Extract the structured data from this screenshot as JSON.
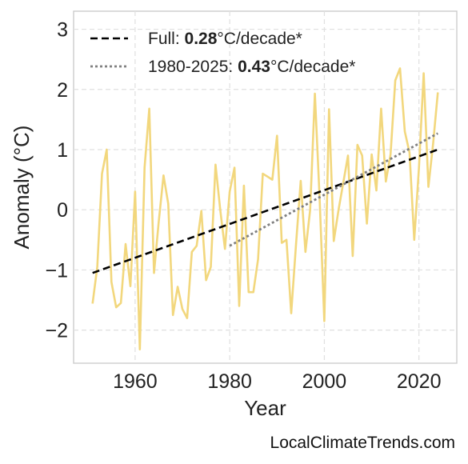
{
  "chart_data": {
    "type": "line",
    "xlabel": "Year",
    "ylabel": "Anomaly (°C)",
    "xlim": [
      1947,
      2028
    ],
    "ylim": [
      -2.55,
      3.3
    ],
    "xticks": [
      1960,
      1980,
      2000,
      2020
    ],
    "yticks": [
      -2,
      -1,
      0,
      1,
      2,
      3
    ],
    "ytick_labels": [
      "−2",
      "−1",
      "0",
      "1",
      "2",
      "3"
    ],
    "grid": true,
    "legend_position": "top-left",
    "series": [
      {
        "style": "line",
        "color": "#f2d77d",
        "x": [
          1951,
          1952,
          1953,
          1954,
          1955,
          1956,
          1957,
          1958,
          1959,
          1960,
          1961,
          1962,
          1963,
          1964,
          1965,
          1966,
          1967,
          1968,
          1969,
          1970,
          1971,
          1972,
          1973,
          1974,
          1975,
          1976,
          1977,
          1978,
          1979,
          1980,
          1981,
          1982,
          1983,
          1984,
          1985,
          1986,
          1987,
          1988,
          1989,
          1990,
          1991,
          1992,
          1993,
          1994,
          1995,
          1996,
          1997,
          1998,
          1999,
          2000,
          2001,
          2002,
          2003,
          2004,
          2005,
          2006,
          2007,
          2008,
          2009,
          2010,
          2011,
          2012,
          2013,
          2014,
          2015,
          2016,
          2017,
          2018,
          2019,
          2020,
          2021,
          2022,
          2023,
          2024
        ],
        "y": [
          -1.56,
          -0.95,
          0.6,
          1.0,
          -1.2,
          -1.62,
          -1.55,
          -0.57,
          -1.27,
          0.3,
          -2.32,
          0.7,
          1.68,
          -1.05,
          -0.2,
          0.57,
          0.1,
          -1.75,
          -1.28,
          -1.65,
          -1.8,
          -0.7,
          -0.6,
          -0.02,
          -1.17,
          -0.95,
          0.75,
          0.0,
          -0.65,
          0.3,
          0.7,
          -1.6,
          0.4,
          -1.37,
          -1.37,
          -0.82,
          0.6,
          0.55,
          0.5,
          1.23,
          -0.55,
          -0.5,
          -1.72,
          -0.6,
          0.48,
          -0.7,
          0.0,
          1.93,
          0.2,
          -1.85,
          1.67,
          -0.52,
          0.0,
          0.45,
          0.9,
          -0.77,
          1.08,
          0.9,
          -0.23,
          0.92,
          0.32,
          1.68,
          0.47,
          0.92,
          2.15,
          2.35,
          1.3,
          0.95,
          -0.5,
          0.7,
          2.27,
          0.38,
          1.1,
          1.95
        ]
      },
      {
        "name": "Full: 0.28°C/decade*",
        "style": "dashed",
        "color": "#000000",
        "x": [
          1951,
          2024
        ],
        "y": [
          -1.05,
          1.0
        ]
      },
      {
        "name": "1980-2025: 0.43°C/decade*",
        "style": "dotted",
        "color": "#808080",
        "x": [
          1980,
          2024
        ],
        "y": [
          -0.6,
          1.27
        ]
      }
    ],
    "legend": [
      {
        "prefix": "Full: ",
        "bold": "0.28",
        "suffix": "°C/decade*"
      },
      {
        "prefix": "1980-2025: ",
        "bold": "0.43",
        "suffix": "°C/decade*"
      }
    ]
  },
  "footer": "LocalClimateTrends.com"
}
